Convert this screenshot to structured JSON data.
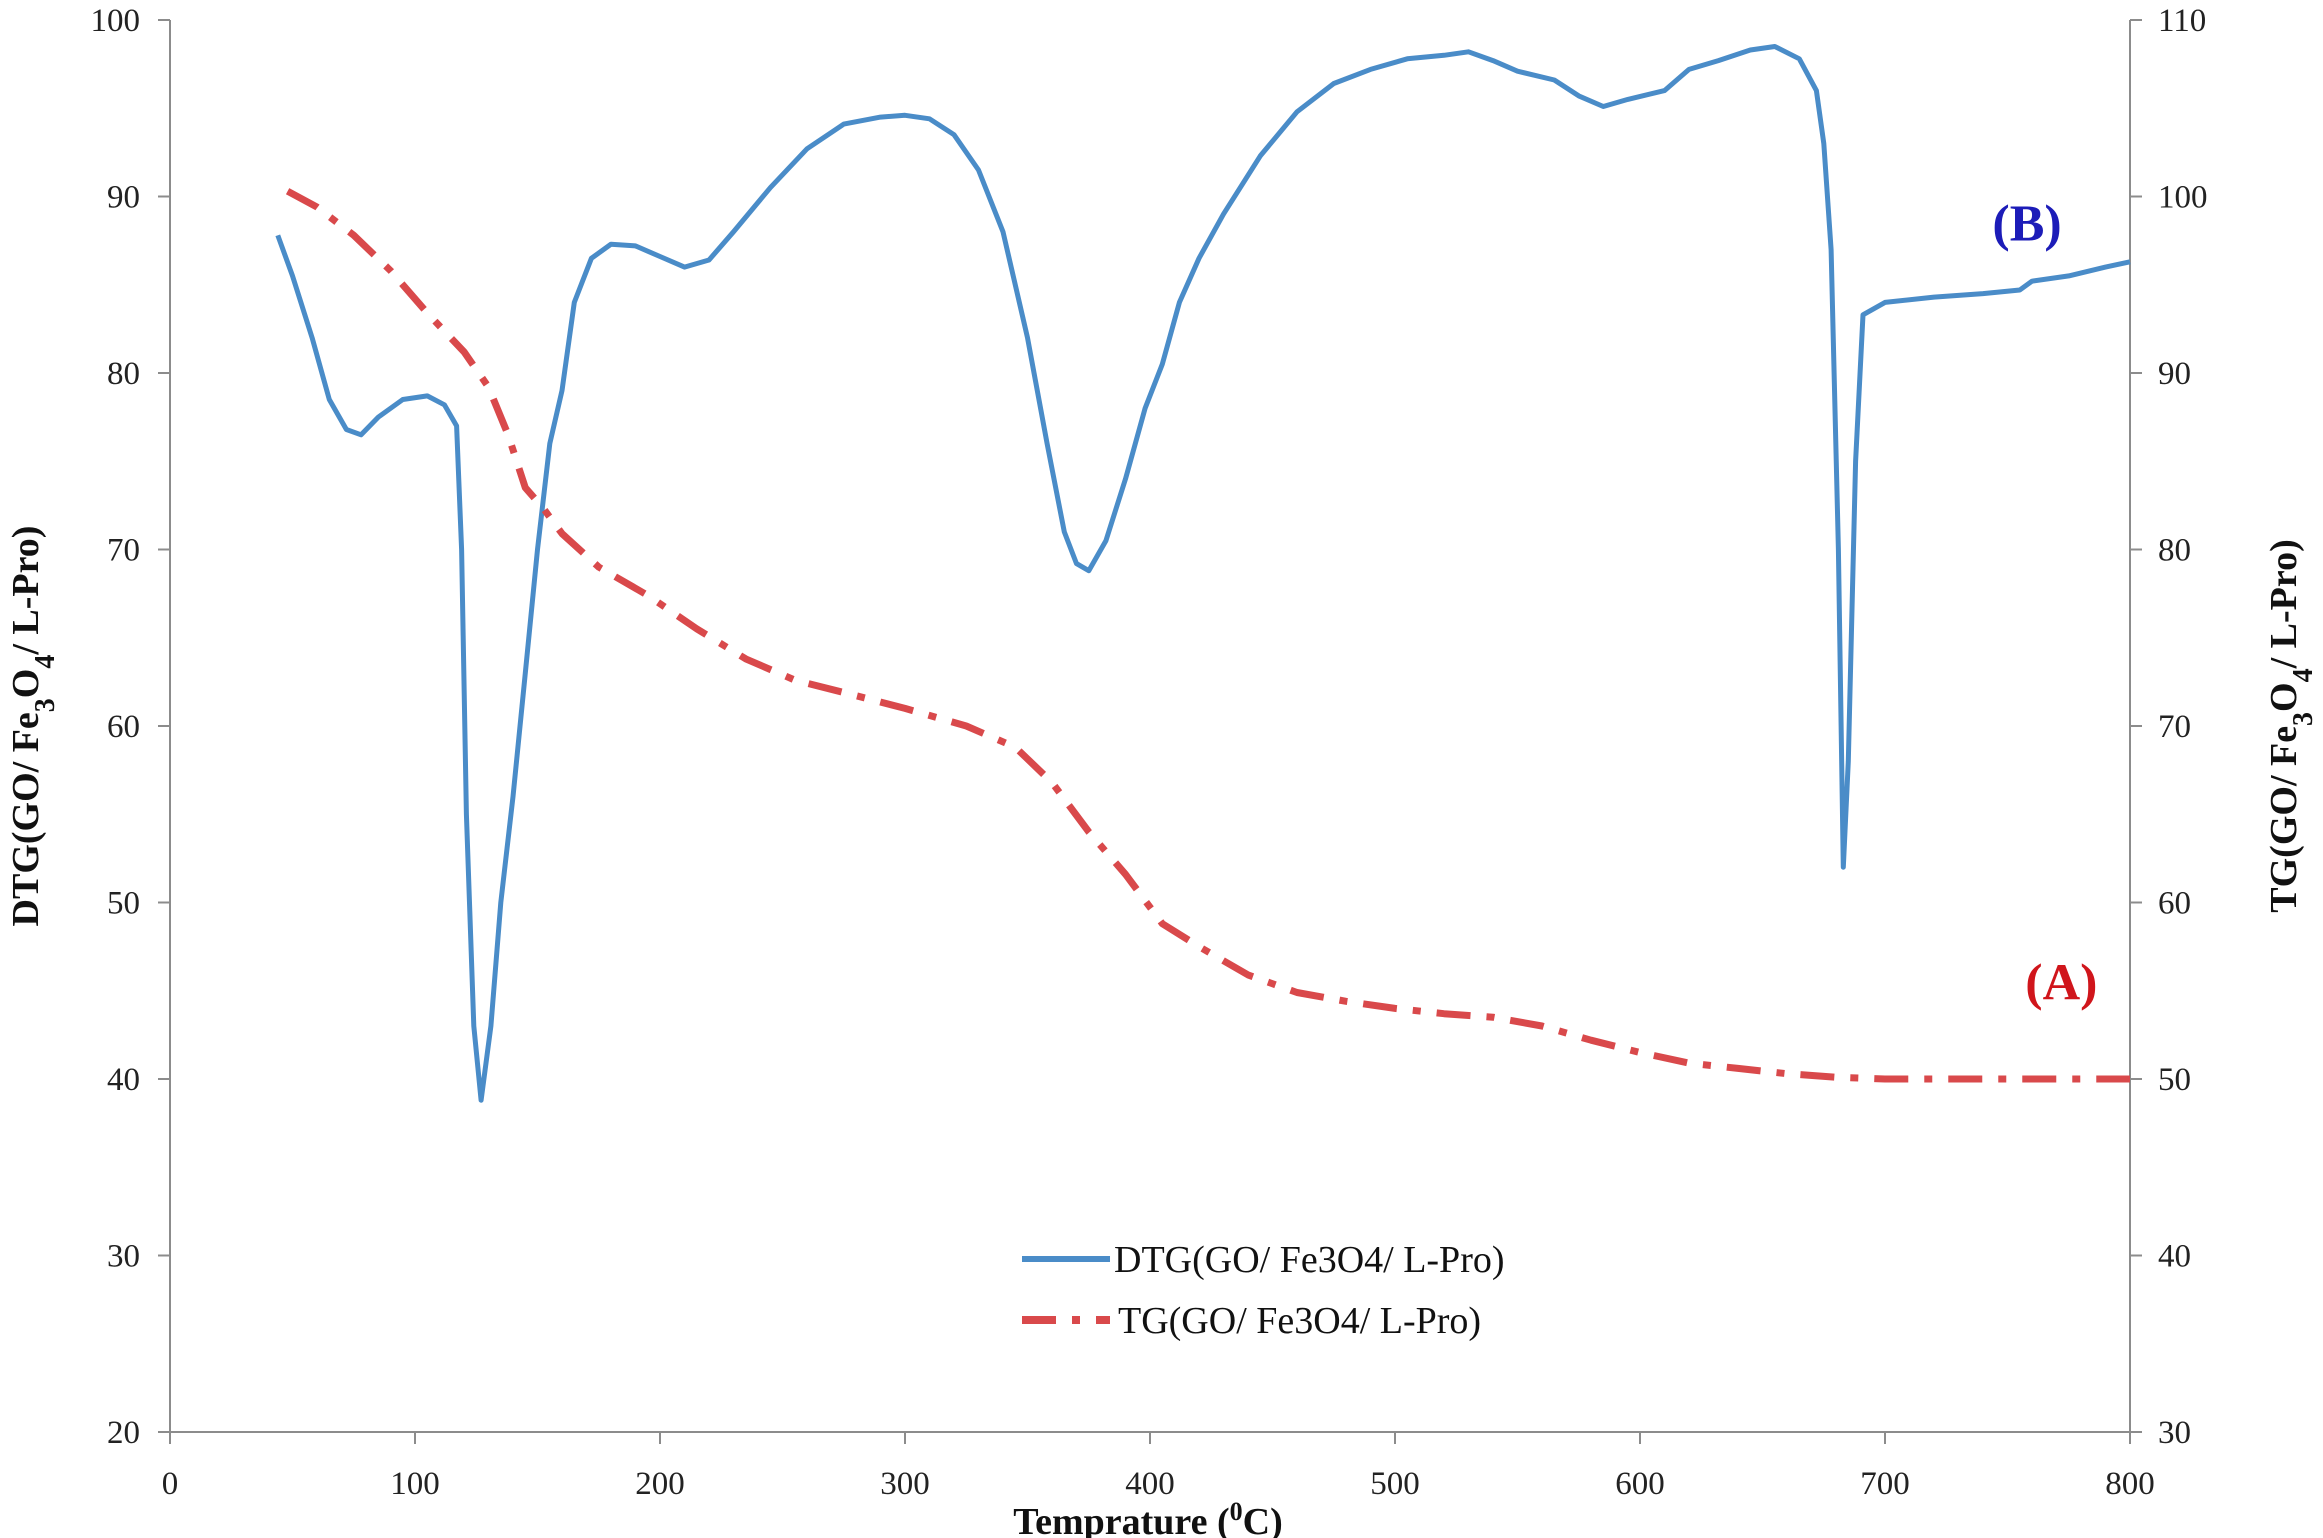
{
  "chart_data": {
    "type": "line",
    "title": "",
    "xlabel": "Temprature (0C)",
    "xlabel_parts": {
      "main": "Temprature (",
      "sup": "0",
      "tail": "C)"
    },
    "ylabel_left": "DTG(GO/ Fe3O4/ L-Pro)",
    "ylabel_left_parts": [
      "DTG(GO/ Fe",
      "3",
      "O",
      "4",
      "/ L-Pro)"
    ],
    "ylabel_right": "TG(GO/ Fe3O4/ L-Pro)",
    "ylabel_right_parts": [
      "TG(GO/ Fe",
      "3",
      "O",
      "4",
      "/ L-Pro)"
    ],
    "xlim": [
      0,
      800
    ],
    "ylim_left": [
      20,
      100
    ],
    "ylim_right": [
      30,
      110
    ],
    "x_ticks": [
      "0",
      "100",
      "200",
      "300",
      "400",
      "500",
      "600",
      "700",
      "800"
    ],
    "y_left_ticks": [
      "20",
      "30",
      "40",
      "50",
      "60",
      "70",
      "80",
      "90",
      "100"
    ],
    "y_right_ticks": [
      "30",
      "40",
      "50",
      "60",
      "70",
      "80",
      "90",
      "100",
      "110"
    ],
    "grid": false,
    "legend_position": "bottom-center",
    "series": [
      {
        "name": "DTG(GO/ Fe3O4/ L-Pro)",
        "axis": "left",
        "color": "#4a8cc8",
        "style": "solid",
        "points": [
          [
            44,
            87.8
          ],
          [
            50,
            85.5
          ],
          [
            58,
            82
          ],
          [
            65,
            78.5
          ],
          [
            72,
            76.8
          ],
          [
            78,
            76.5
          ],
          [
            85,
            77.5
          ],
          [
            95,
            78.5
          ],
          [
            105,
            78.7
          ],
          [
            112,
            78.2
          ],
          [
            117,
            77
          ],
          [
            119,
            70
          ],
          [
            121,
            55
          ],
          [
            124,
            43
          ],
          [
            127,
            38.8
          ],
          [
            131,
            43
          ],
          [
            135,
            50
          ],
          [
            140,
            56
          ],
          [
            145,
            63
          ],
          [
            150,
            70
          ],
          [
            155,
            76
          ],
          [
            160,
            79
          ],
          [
            165,
            84
          ],
          [
            172,
            86.5
          ],
          [
            180,
            87.3
          ],
          [
            190,
            87.2
          ],
          [
            200,
            86.6
          ],
          [
            210,
            86
          ],
          [
            220,
            86.4
          ],
          [
            230,
            88
          ],
          [
            245,
            90.5
          ],
          [
            260,
            92.7
          ],
          [
            275,
            94.1
          ],
          [
            290,
            94.5
          ],
          [
            300,
            94.6
          ],
          [
            310,
            94.4
          ],
          [
            320,
            93.5
          ],
          [
            330,
            91.5
          ],
          [
            340,
            88
          ],
          [
            350,
            82
          ],
          [
            358,
            76
          ],
          [
            365,
            71
          ],
          [
            370,
            69.2
          ],
          [
            375,
            68.8
          ],
          [
            382,
            70.5
          ],
          [
            390,
            74
          ],
          [
            398,
            78
          ],
          [
            405,
            80.5
          ],
          [
            412,
            84
          ],
          [
            420,
            86.5
          ],
          [
            430,
            89
          ],
          [
            445,
            92.3
          ],
          [
            460,
            94.8
          ],
          [
            475,
            96.4
          ],
          [
            490,
            97.2
          ],
          [
            505,
            97.8
          ],
          [
            520,
            98
          ],
          [
            530,
            98.2
          ],
          [
            540,
            97.7
          ],
          [
            550,
            97.1
          ],
          [
            565,
            96.6
          ],
          [
            575,
            95.7
          ],
          [
            585,
            95.1
          ],
          [
            595,
            95.5
          ],
          [
            610,
            96
          ],
          [
            620,
            97.2
          ],
          [
            632,
            97.7
          ],
          [
            645,
            98.3
          ],
          [
            655,
            98.5
          ],
          [
            665,
            97.8
          ],
          [
            672,
            96
          ],
          [
            675,
            93
          ],
          [
            678,
            87
          ],
          [
            681,
            70
          ],
          [
            683,
            52
          ],
          [
            685,
            58
          ],
          [
            688,
            75
          ],
          [
            691,
            83.3
          ],
          [
            700,
            84
          ],
          [
            720,
            84.3
          ],
          [
            740,
            84.5
          ],
          [
            755,
            84.7
          ],
          [
            760,
            85.2
          ],
          [
            775,
            85.5
          ],
          [
            790,
            86
          ],
          [
            800,
            86.3
          ]
        ]
      },
      {
        "name": "TG(GO/ Fe3O4/ L-Pro)",
        "axis": "right",
        "color": "#d9494b",
        "style": "dash-dot",
        "points": [
          [
            48,
            100.3
          ],
          [
            60,
            99.4
          ],
          [
            75,
            97.8
          ],
          [
            90,
            95.8
          ],
          [
            105,
            93.4
          ],
          [
            120,
            91.2
          ],
          [
            130,
            89.2
          ],
          [
            138,
            86.5
          ],
          [
            145,
            83.5
          ],
          [
            152,
            82.4
          ],
          [
            160,
            80.9
          ],
          [
            175,
            79
          ],
          [
            195,
            77.4
          ],
          [
            215,
            75.5
          ],
          [
            235,
            73.8
          ],
          [
            255,
            72.6
          ],
          [
            275,
            71.9
          ],
          [
            300,
            71
          ],
          [
            325,
            70
          ],
          [
            345,
            68.8
          ],
          [
            360,
            66.8
          ],
          [
            375,
            64
          ],
          [
            390,
            61.6
          ],
          [
            405,
            58.8
          ],
          [
            420,
            57.5
          ],
          [
            440,
            55.9
          ],
          [
            460,
            54.9
          ],
          [
            480,
            54.4
          ],
          [
            500,
            54
          ],
          [
            520,
            53.7
          ],
          [
            540,
            53.5
          ],
          [
            560,
            53
          ],
          [
            580,
            52.2
          ],
          [
            600,
            51.5
          ],
          [
            620,
            50.9
          ],
          [
            640,
            50.6
          ],
          [
            660,
            50.3
          ],
          [
            680,
            50.1
          ],
          [
            700,
            50
          ],
          [
            730,
            50
          ],
          [
            760,
            50
          ],
          [
            800,
            50
          ]
        ]
      }
    ],
    "annotations": [
      {
        "text": "(B)",
        "color": "#1c1cb8",
        "x": 758,
        "y_left": 87.5
      },
      {
        "text": "(A)",
        "color": "#d0151b",
        "x": 772,
        "y_left": 44.5
      }
    ]
  }
}
